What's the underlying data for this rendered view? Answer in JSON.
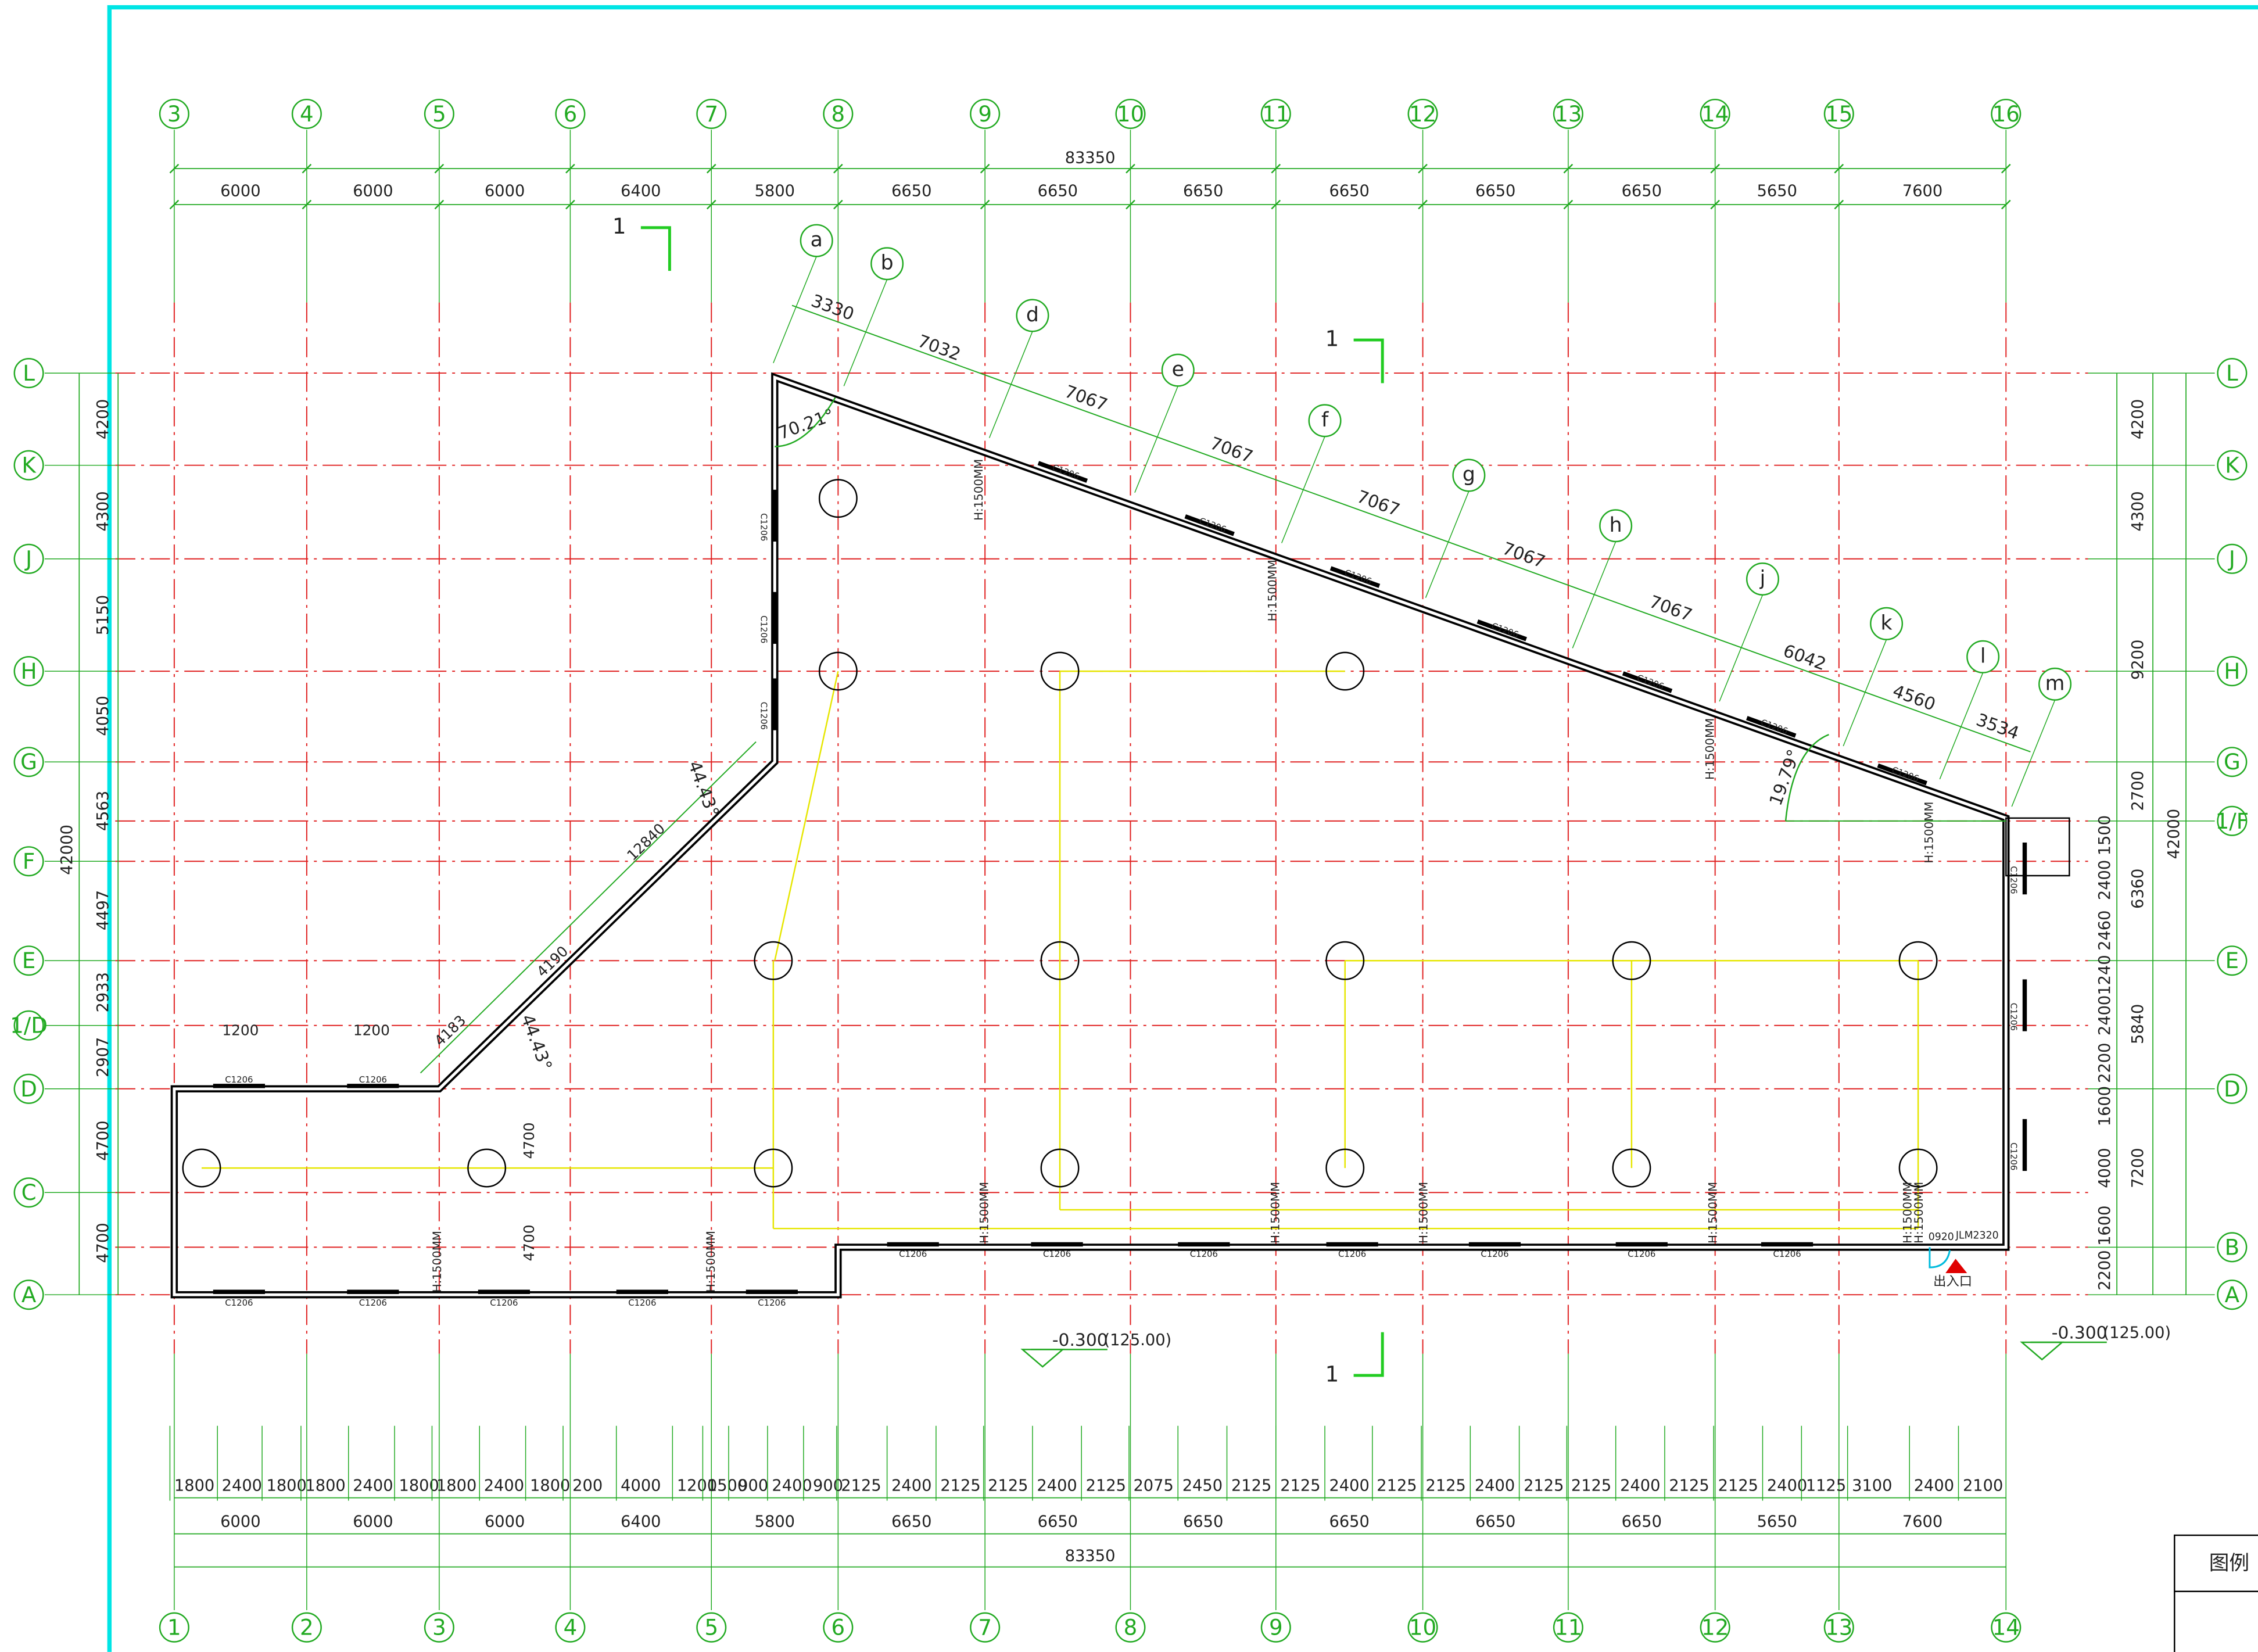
{
  "top_axis": {
    "labels": [
      "3",
      "4",
      "5",
      "6",
      "7",
      "8",
      "9",
      "10",
      "11",
      "12",
      "13",
      "14",
      "15",
      "16"
    ],
    "bay_dims": [
      "6000",
      "6000",
      "6000",
      "6400",
      "5800",
      "6650",
      "6650",
      "6650",
      "6650",
      "6650",
      "6650",
      "5650",
      "7600"
    ],
    "total": "83350"
  },
  "bottom_axis": {
    "labels": [
      "1",
      "2",
      "3",
      "4",
      "5",
      "6",
      "7",
      "8",
      "9",
      "10",
      "11",
      "12",
      "13",
      "14"
    ],
    "bay_dims": [
      "6000",
      "6000",
      "6000",
      "6400",
      "5800",
      "6650",
      "6650",
      "6650",
      "6650",
      "6650",
      "6650",
      "5650",
      "7600"
    ],
    "total": "83350",
    "detail_dims": [
      "1800",
      "2400",
      "1800",
      "1800",
      "2400",
      "1800",
      "1800",
      "2400",
      "1800",
      "200",
      "4000",
      "1200",
      "1500",
      "900",
      "2400",
      "900",
      "2125",
      "2400",
      "2125",
      "2125",
      "2400",
      "2125",
      "2075",
      "2450",
      "2125",
      "2125",
      "2400",
      "2125",
      "2125",
      "2400",
      "2125",
      "2125",
      "2400",
      "2125",
      "2125",
      "2400",
      "1125",
      "3100",
      "2400",
      "2100"
    ]
  },
  "left_axis": {
    "labels": [
      "L",
      "K",
      "J",
      "H",
      "G",
      "F",
      "E",
      "1/D",
      "D",
      "C",
      "A"
    ],
    "dims": [
      "4200",
      "4300",
      "5150",
      "4050",
      "4563",
      "4497",
      "2933",
      "2907",
      "4700",
      "4700"
    ],
    "total": "42000"
  },
  "right_axis": {
    "labels": [
      "L",
      "K",
      "J",
      "H",
      "G",
      "1/F",
      "E",
      "D",
      "B",
      "A"
    ],
    "outer_dims": [
      "4200",
      "4300",
      "9200",
      "2700"
    ],
    "inner_dims": [
      "1500",
      "2400",
      "2460",
      "1240",
      "2400",
      "2200",
      "1600",
      "4000",
      "1600",
      "2200"
    ],
    "mid_dims": [
      "6360",
      "5840",
      "7200"
    ],
    "total": "42000"
  },
  "diagonal": {
    "points": [
      "a",
      "b",
      "d",
      "e",
      "f",
      "g",
      "h",
      "j",
      "k",
      "l",
      "m"
    ],
    "dims": [
      "3330",
      "7032",
      "7067",
      "7067",
      "7067",
      "7067",
      "7067",
      "6042",
      "4560",
      "3534"
    ]
  },
  "angles": [
    "70.21°",
    "44.43°",
    "44.43°",
    "19.79°"
  ],
  "slant_dims": [
    "12840",
    "4190",
    "4183"
  ],
  "misc_dims": [
    "1200",
    "1200",
    "4700",
    "4700"
  ],
  "section_marks": [
    "1",
    "1",
    "1"
  ],
  "elevations": [
    {
      "level": "-0.300",
      "height": "(125.00)"
    },
    {
      "level": "-0.300",
      "height": "(125.00)"
    }
  ],
  "windows": [
    "C1206",
    "C1206",
    "C1206",
    "C1206",
    "C1206",
    "C1206",
    "C1206",
    "C1206",
    "C1206",
    "C1206",
    "C1206",
    "C1206",
    "C1206",
    "C1206",
    "C1206",
    "C1206",
    "C1206",
    "C1206",
    "C1206",
    "C1206",
    "C1206",
    "C1206",
    "C1206",
    "C1206",
    "C1206",
    "C1206",
    "C1206"
  ],
  "heights": [
    "H:1500MM",
    "H:1500MM",
    "H:1500MM",
    "H:1500MM",
    "H:1500MM",
    "H:1500MM",
    "H:1500MM",
    "H:1500MM",
    "H:1500MM",
    "H:1500MM",
    "H:1500MM",
    "H:1500MM"
  ],
  "door_labels": [
    "JLM2320",
    "0920"
  ],
  "entrance": "出入口",
  "legend": "图例"
}
